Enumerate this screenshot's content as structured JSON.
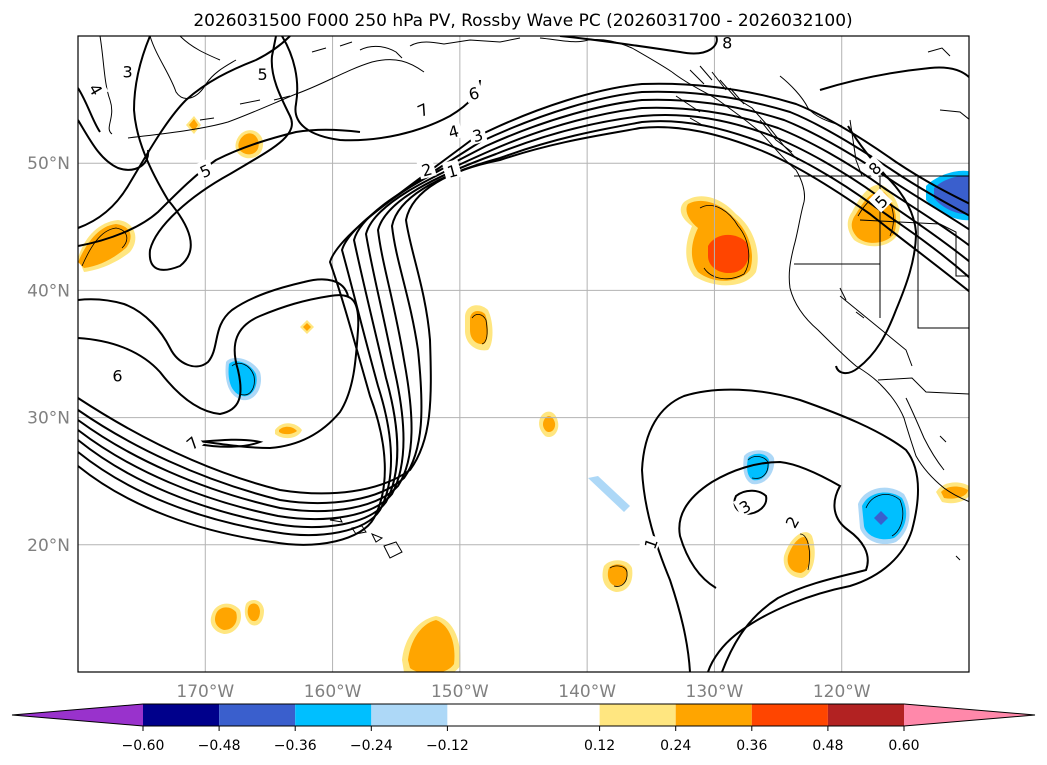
{
  "chart_data": {
    "type": "map",
    "title": "2026031500 F000 250 hPa PV, Rossby Wave PC (2026031700 - 2026032100)",
    "map_extent": {
      "lon": [
        -180,
        -110
      ],
      "lat": [
        10,
        60
      ]
    },
    "lon_ticks": [
      {
        "value": -170,
        "label": "170°W"
      },
      {
        "value": -160,
        "label": "160°W"
      },
      {
        "value": -150,
        "label": "150°W"
      },
      {
        "value": -140,
        "label": "140°W"
      },
      {
        "value": -130,
        "label": "130°W"
      },
      {
        "value": -120,
        "label": "120°W"
      }
    ],
    "lat_ticks": [
      {
        "value": 20,
        "label": "20°N"
      },
      {
        "value": 30,
        "label": "30°N"
      },
      {
        "value": 40,
        "label": "40°N"
      },
      {
        "value": 50,
        "label": "50°N"
      }
    ],
    "colorbar": {
      "range": [
        -0.72,
        0.72
      ],
      "ticks": [
        {
          "value": -0.6,
          "label": "−0.60"
        },
        {
          "value": -0.48,
          "label": "−0.48"
        },
        {
          "value": -0.36,
          "label": "−0.36"
        },
        {
          "value": -0.24,
          "label": "−0.24"
        },
        {
          "value": -0.12,
          "label": "−0.12"
        },
        {
          "value": 0.12,
          "label": "0.12"
        },
        {
          "value": 0.24,
          "label": "0.24"
        },
        {
          "value": 0.36,
          "label": "0.36"
        },
        {
          "value": 0.48,
          "label": "0.48"
        },
        {
          "value": 0.6,
          "label": "0.60"
        }
      ],
      "extend_colors": {
        "low": "#9932cc",
        "high": "#ff88aa"
      },
      "bins": [
        {
          "from": -0.6,
          "to": -0.48,
          "color": "#00008b"
        },
        {
          "from": -0.48,
          "to": -0.36,
          "color": "#3a5fcd"
        },
        {
          "from": -0.36,
          "to": -0.24,
          "color": "#00bfff"
        },
        {
          "from": -0.24,
          "to": -0.12,
          "color": "#add8f7"
        },
        {
          "from": -0.12,
          "to": 0.12,
          "color": "#ffffff"
        },
        {
          "from": 0.12,
          "to": 0.24,
          "color": "#ffe680"
        },
        {
          "from": 0.24,
          "to": 0.36,
          "color": "#ffa500"
        },
        {
          "from": 0.36,
          "to": 0.48,
          "color": "#ff4500"
        },
        {
          "from": 0.48,
          "to": 0.6,
          "color": "#b22222"
        }
      ]
    },
    "pv_contour_labels": [
      {
        "text": "1",
        "lon": -150.6,
        "lat": 49.4,
        "rot": -15
      },
      {
        "text": "2",
        "lon": -152.6,
        "lat": 49.5,
        "rot": -15
      },
      {
        "text": "3",
        "lon": -148.6,
        "lat": 52.2,
        "rot": -15
      },
      {
        "text": "4",
        "lon": -150.5,
        "lat": 52.5,
        "rot": -15
      },
      {
        "text": "6",
        "lon": -148.9,
        "lat": 55.5,
        "rot": -15
      },
      {
        "text": "7",
        "lon": -152.9,
        "lat": 54.2,
        "rot": -25
      },
      {
        "text": "5",
        "lon": -170.0,
        "lat": 49.4,
        "rot": -25
      },
      {
        "text": "3",
        "lon": -176.1,
        "lat": 57.2,
        "rot": 0
      },
      {
        "text": "4",
        "lon": -178.6,
        "lat": 55.8,
        "rot": 60
      },
      {
        "text": "6",
        "lon": -176.9,
        "lat": 33.3,
        "rot": 0
      },
      {
        "text": "7",
        "lon": -171.0,
        "lat": 28.0,
        "rot": -40
      },
      {
        "text": "5",
        "lon": -165.5,
        "lat": 57.0,
        "rot": 0
      },
      {
        "text": "8",
        "lon": -129.0,
        "lat": 59.5,
        "rot": 0
      },
      {
        "text": "8",
        "lon": -117.4,
        "lat": 49.6,
        "rot": -45
      },
      {
        "text": "5",
        "lon": -116.9,
        "lat": 47.0,
        "rot": -45
      },
      {
        "text": "1",
        "lon": -135.0,
        "lat": 20.1,
        "rot": -70
      },
      {
        "text": "2",
        "lon": -123.9,
        "lat": 21.8,
        "rot": -60
      },
      {
        "text": "3",
        "lon": -127.6,
        "lat": 23.0,
        "rot": -30
      }
    ]
  }
}
